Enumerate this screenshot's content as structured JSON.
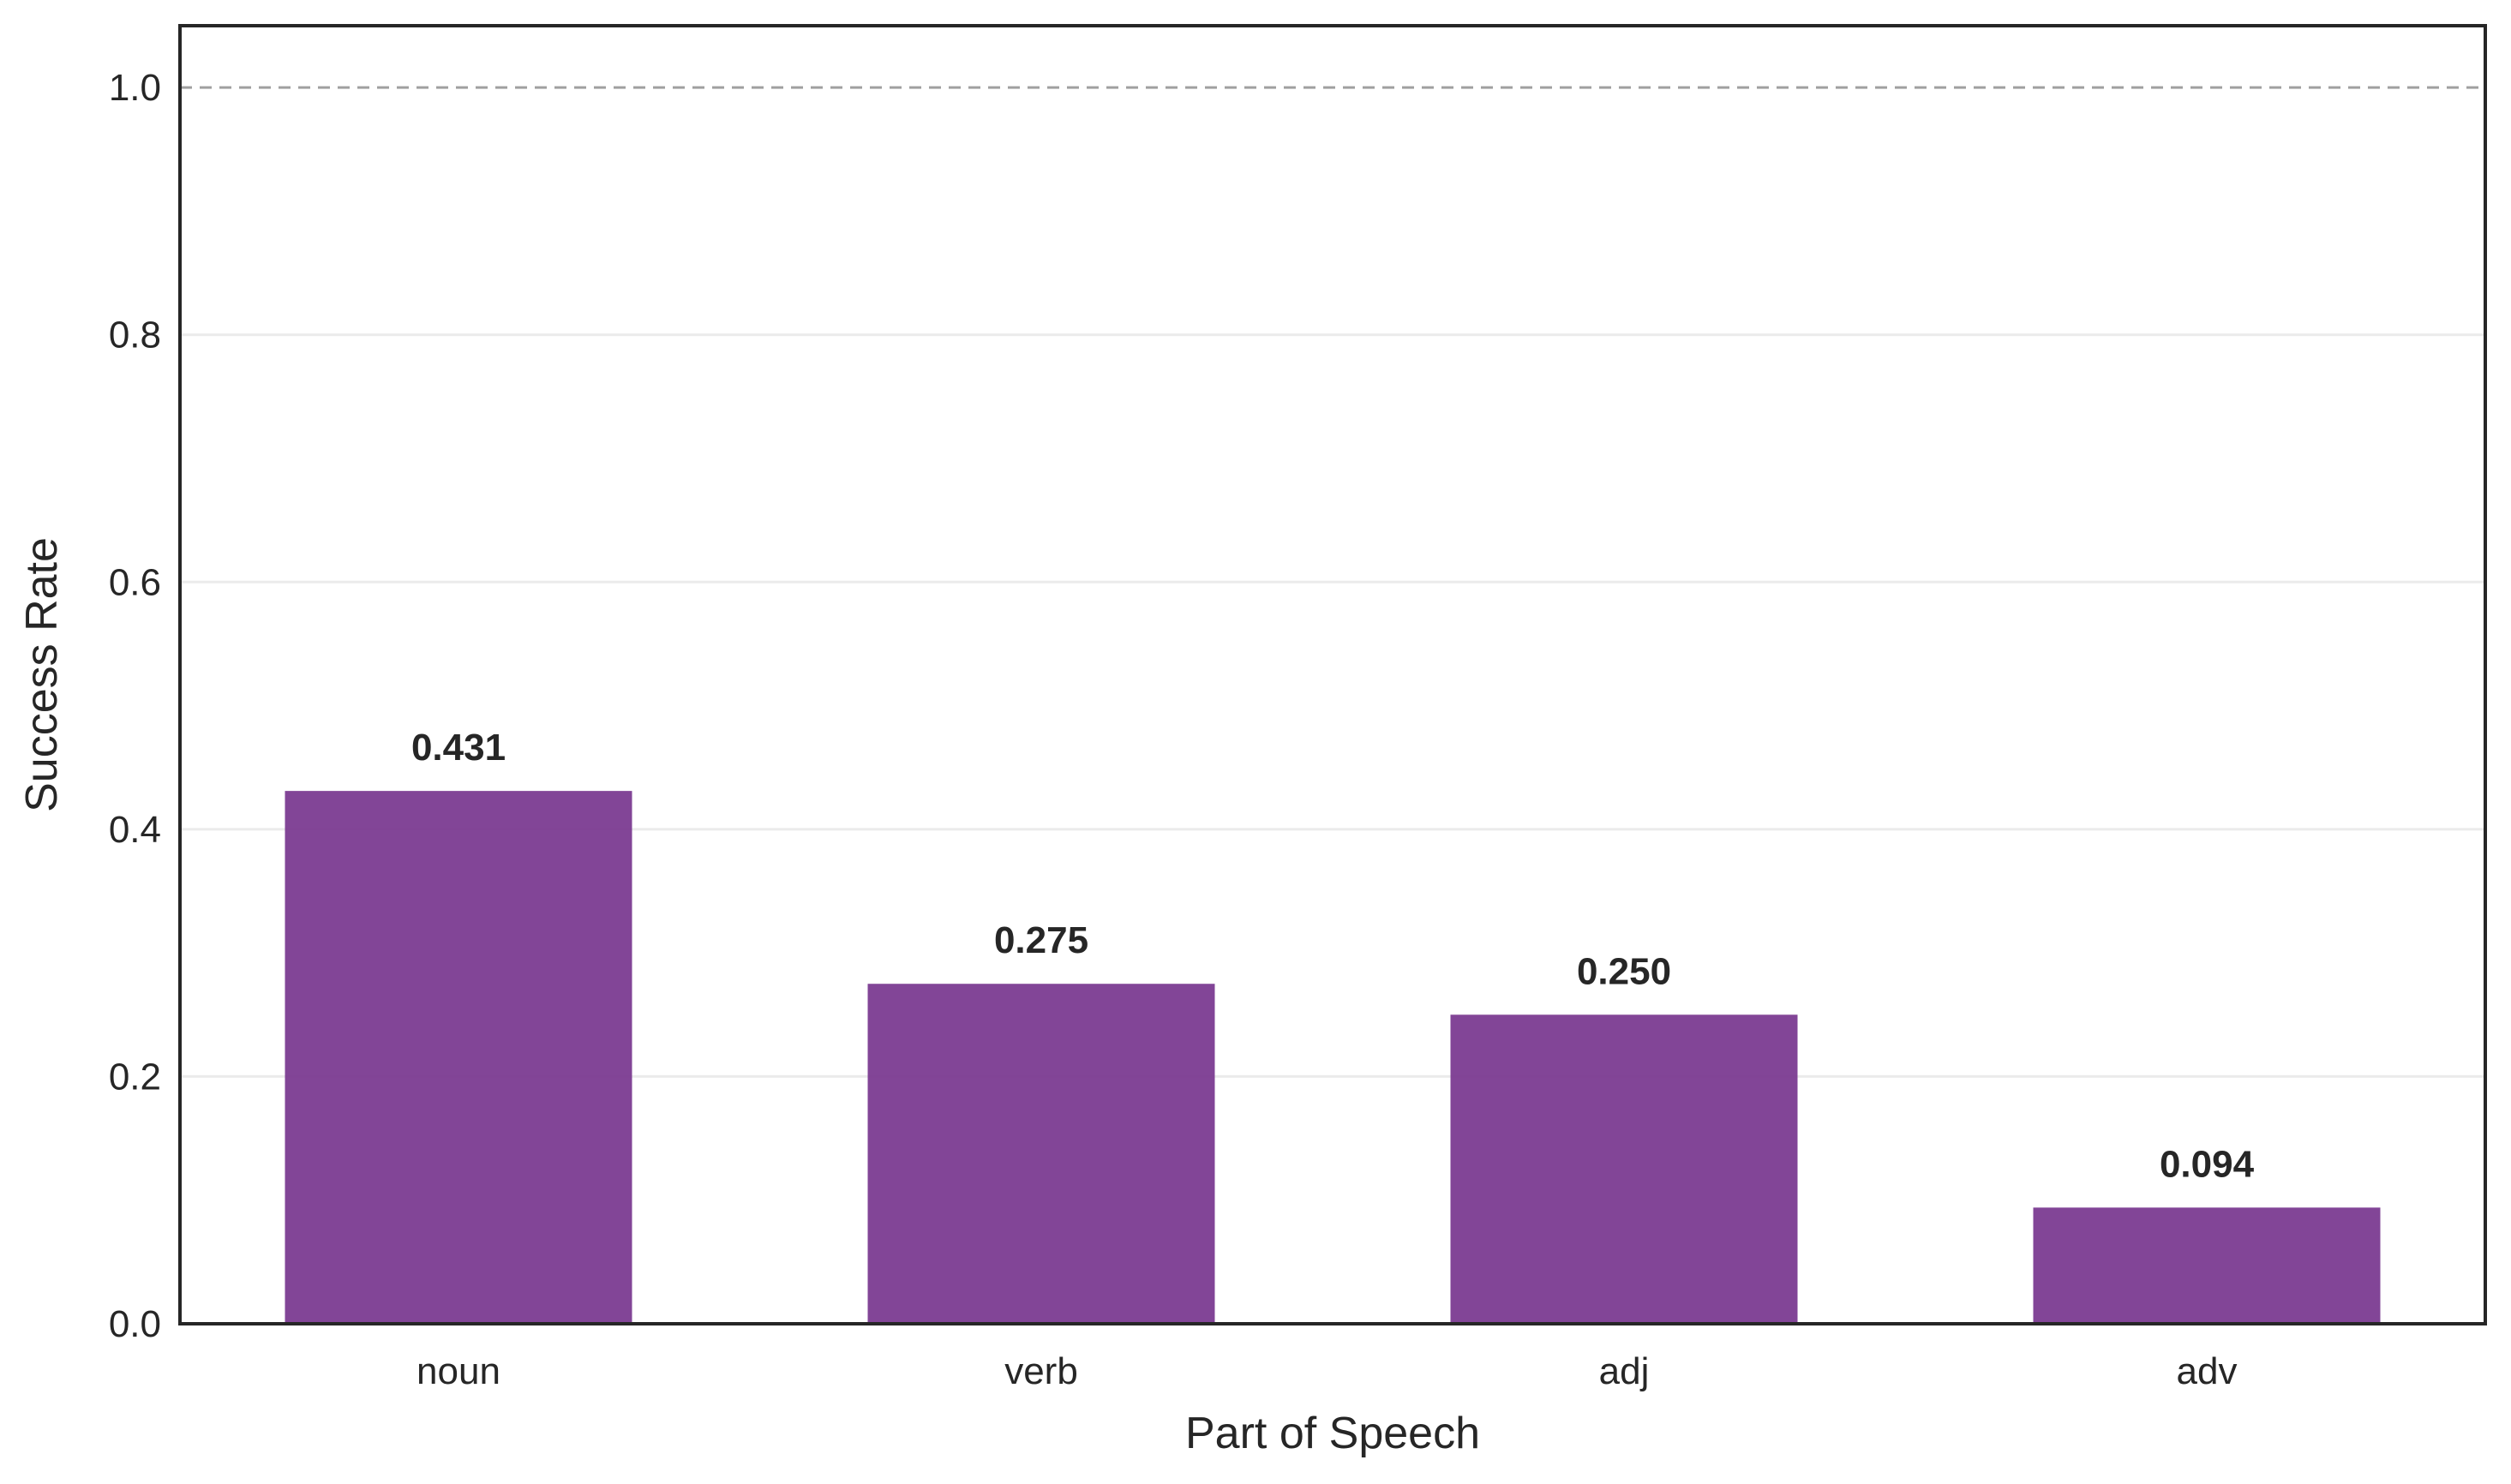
{
  "chart_data": {
    "type": "bar",
    "title": "",
    "xlabel": "Part of Speech",
    "ylabel": "Success Rate",
    "categories": [
      "noun",
      "verb",
      "adj",
      "adv"
    ],
    "values": [
      0.431,
      0.275,
      0.25,
      0.094
    ],
    "value_labels": [
      "0.431",
      "0.275",
      "0.250",
      "0.094"
    ],
    "ylim": [
      0,
      1.05
    ],
    "yticks": [
      0.0,
      0.2,
      0.4,
      0.6,
      0.8,
      1.0
    ],
    "ytick_labels": [
      "0.0",
      "0.2",
      "0.4",
      "0.6",
      "0.8",
      "1.0"
    ],
    "reference_line": 1.0,
    "grid": "y",
    "bar_color": "#7b3b91",
    "legend": "none"
  }
}
